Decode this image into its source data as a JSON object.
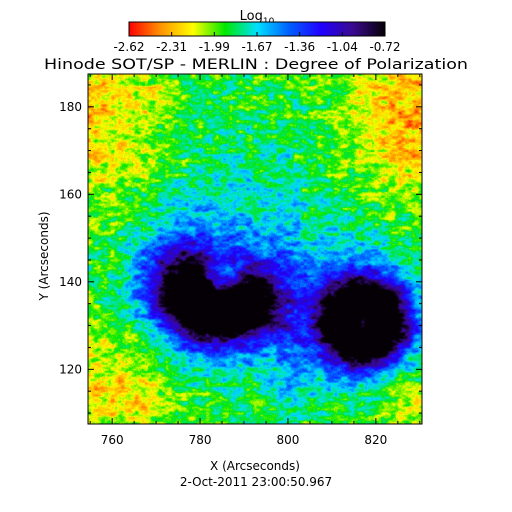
{
  "chart_data": {
    "type": "heatmap",
    "title": "Hinode SOT/SP - MERLIN : Degree of Polarization",
    "subtitle": "2-Oct-2011 23:00:50.967",
    "xlabel": "X (Arcseconds)",
    "ylabel": "Y (Arcseconds)",
    "xlim": [
      754.5,
      830.5
    ],
    "ylim": [
      107.5,
      187.5
    ],
    "xticks": [
      760,
      780,
      800,
      820
    ],
    "yticks": [
      120,
      140,
      160,
      180
    ],
    "colorbar": {
      "label_base": "Log",
      "label_sub": "10",
      "ticks": [
        "-2.62",
        "-2.31",
        "-1.99",
        "-1.67",
        "-1.36",
        "-1.04",
        "-0.72"
      ],
      "range": [
        -2.62,
        -0.72
      ],
      "colors": [
        "#ff0000",
        "#ff9400",
        "#ffff00",
        "#00e800",
        "#00e0ff",
        "#0060ff",
        "#2000ff",
        "#3a0a8e",
        "#050005"
      ]
    },
    "features": [
      {
        "name": "left spot",
        "x": 783,
        "y": 137,
        "log10_dop": -0.9
      },
      {
        "name": "right spot",
        "x": 817,
        "y": 131,
        "log10_dop": -0.9
      }
    ]
  }
}
